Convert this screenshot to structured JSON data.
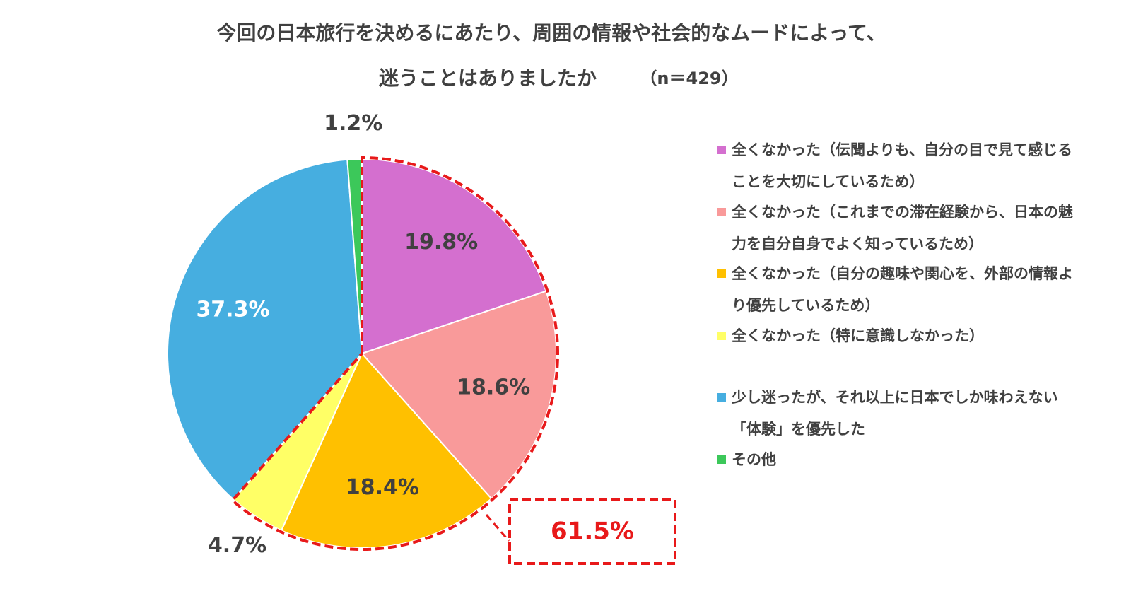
{
  "chart_data": {
    "type": "pie",
    "title": "今回の日本旅行を決めるにあたり、周囲の情報や社会的なムードによって、",
    "subtitle": "迷うことはありましたか",
    "note": "（n＝429）",
    "categories": [
      "全くなかった（伝聞よりも、自分の目で見て感じることを大切にしているため）",
      "全くなかった（これまでの滞在経験から、日本の魅力を自分自身でよく知っているため）",
      "全くなかった（自分の趣味や関心を、外部の情報より優先しているため）",
      "全くなかった（特に意識しなかった）",
      "少し迷ったが、それ以上に日本でしか味わえない「体験」を優先した",
      "その他"
    ],
    "values": [
      19.8,
      18.6,
      18.4,
      4.7,
      37.3,
      1.2
    ],
    "value_labels": [
      "19.8%",
      "18.6%",
      "18.4%",
      "4.7%",
      "37.3%",
      "1.2%"
    ],
    "colors": [
      "#d46fcf",
      "#f99a9a",
      "#ffc000",
      "#ffff66",
      "#46aee0",
      "#3cc85a"
    ],
    "annotation": "61.5%"
  }
}
